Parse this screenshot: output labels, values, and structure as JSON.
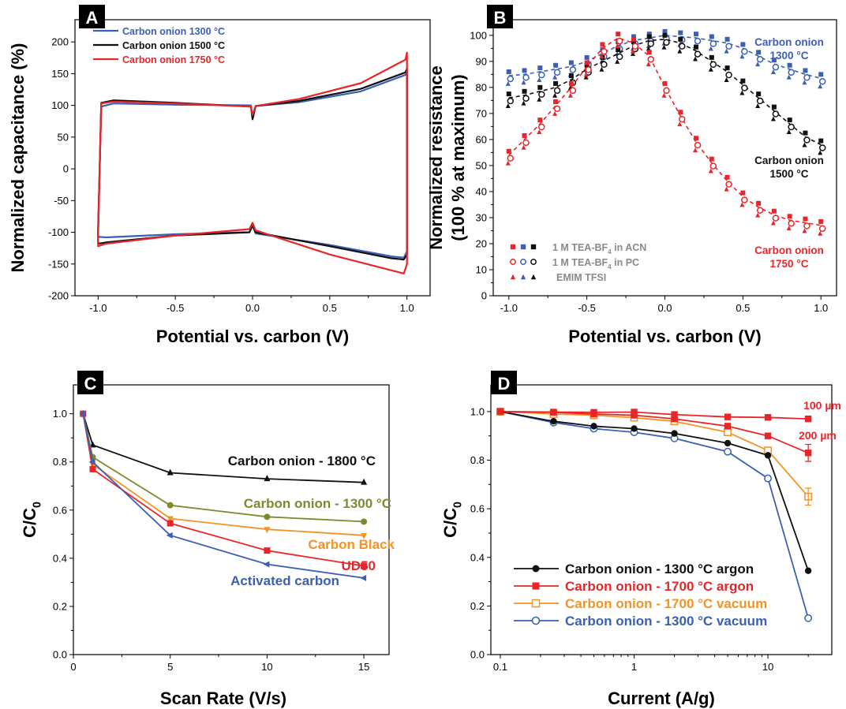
{
  "chart_data": [
    {
      "panel": "A",
      "type": "line",
      "xlabel": "Potential vs. carbon (V)",
      "ylabel": "Normalized capacitance (%)",
      "xlim": [
        -1.15,
        1.15
      ],
      "ylim": [
        -200,
        235
      ],
      "xticks": [
        -1.0,
        -0.5,
        0.0,
        0.5,
        1.0
      ],
      "xtick_labels": [
        "-1.0",
        "-0.5",
        "0.0",
        "0.5",
        "1.0"
      ],
      "yticks": [
        -200,
        -150,
        -100,
        -50,
        0,
        50,
        100,
        150,
        200
      ],
      "ytick_labels": [
        "-200",
        "-150",
        "-100",
        "-50",
        "0",
        "50",
        "100",
        "150",
        "200"
      ],
      "legend_position": "top-left",
      "series": [
        {
          "name": "Carbon onion 1300 °C",
          "color": "#3a5fb5",
          "x": [
            -1.0,
            -0.98,
            -0.9,
            -0.5,
            -0.01,
            0.0,
            0.02,
            0.3,
            0.7,
            0.99,
            1.0,
            1.0,
            0.98,
            0.9,
            0.5,
            0.02,
            0.0,
            -0.02,
            -0.5,
            -0.95,
            -1.0,
            -1.0
          ],
          "y": [
            -95,
            98,
            103,
            101,
            100,
            80,
            99,
            105,
            122,
            148,
            152,
            -130,
            -140,
            -138,
            -120,
            -102,
            -90,
            -100,
            -103,
            -108,
            -107,
            -95
          ]
        },
        {
          "name": "Carbon onion 1500 °C",
          "color": "#111111",
          "x": [
            -1.0,
            -0.98,
            -0.9,
            -0.5,
            -0.01,
            0.0,
            0.02,
            0.3,
            0.7,
            0.99,
            1.0,
            1.0,
            0.98,
            0.9,
            0.5,
            0.02,
            0.0,
            -0.02,
            -0.5,
            -0.95,
            -1.0,
            -1.0
          ],
          "y": [
            -100,
            104,
            108,
            104,
            98,
            78,
            99,
            107,
            126,
            152,
            158,
            -135,
            -143,
            -141,
            -122,
            -100,
            -88,
            -100,
            -105,
            -116,
            -118,
            -100
          ]
        },
        {
          "name": "Carbon onion 1750 °C",
          "color": "#e8262a",
          "x": [
            -1.0,
            -0.98,
            -0.9,
            -0.5,
            -0.01,
            0.0,
            0.02,
            0.3,
            0.7,
            0.99,
            1.0,
            1.0,
            0.98,
            0.9,
            0.5,
            0.02,
            0.0,
            -0.02,
            -0.5,
            -0.95,
            -1.0,
            -1.0
          ],
          "y": [
            -105,
            103,
            106,
            103,
            98,
            85,
            99,
            110,
            135,
            172,
            183,
            -150,
            -165,
            -160,
            -135,
            -97,
            -85,
            -95,
            -105,
            -118,
            -122,
            -105
          ]
        }
      ]
    },
    {
      "panel": "B",
      "type": "scatter",
      "xlabel": "Potential vs. carbon (V)",
      "ylabel": "Normalized resistance\n(100 % at maximum)",
      "ylabel_lines": [
        "Normalized resistance",
        "(100 % at maximum)"
      ],
      "xlim": [
        -1.1,
        1.1
      ],
      "ylim": [
        0,
        106
      ],
      "xticks": [
        -1.0,
        -0.5,
        0.0,
        0.5,
        1.0
      ],
      "xtick_labels": [
        "-1.0",
        "-0.5",
        "0.0",
        "0.5",
        "1.0"
      ],
      "yticks": [
        0,
        10,
        20,
        30,
        40,
        50,
        60,
        70,
        80,
        90,
        100
      ],
      "ytick_labels": [
        "0",
        "10",
        "20",
        "30",
        "40",
        "50",
        "60",
        "70",
        "80",
        "90",
        "100"
      ],
      "legend_position": "bottom-left",
      "legend": [
        {
          "label": "1 M TEA-BF",
          "sub": "4",
          "tail": " in ACN",
          "marker": "square"
        },
        {
          "label": "1 M TEA-BF",
          "sub": "4",
          "tail": " in PC",
          "marker": "circle"
        },
        {
          "label": "EMIM TFSI",
          "sub": "",
          "tail": "",
          "marker": "triangle"
        }
      ],
      "annotations": [
        {
          "lines": [
            "Carbon onion",
            "1300 °C"
          ],
          "color": "#3a5fb5"
        },
        {
          "lines": [
            "Carbon onion",
            "1500 °C"
          ],
          "color": "#111111"
        },
        {
          "lines": [
            "Carbon onion",
            "1750 °C"
          ],
          "color": "#e8262a"
        }
      ],
      "x": [
        -1.0,
        -0.9,
        -0.8,
        -0.7,
        -0.6,
        -0.5,
        -0.4,
        -0.3,
        -0.2,
        -0.1,
        0.0,
        0.1,
        0.2,
        0.3,
        0.4,
        0.5,
        0.6,
        0.7,
        0.8,
        0.9,
        1.0
      ],
      "series": [
        {
          "name": "Carbon onion 1300 °C",
          "color": "#3a5fb5",
          "values": [
            84.5,
            85,
            86,
            87,
            88,
            90,
            93,
            96,
            98,
            99,
            100,
            99.5,
            99,
            98,
            97,
            95,
            92,
            89,
            87,
            85,
            83.5
          ]
        },
        {
          "name": "Carbon onion 1500 °C",
          "color": "#111111",
          "values": [
            76,
            77,
            78.5,
            80,
            83,
            87,
            90,
            93,
            96,
            98,
            98.5,
            97,
            94,
            90,
            86,
            81,
            76,
            71,
            66,
            61,
            58
          ]
        },
        {
          "name": "Carbon onion 1750 °C",
          "color": "#e8262a",
          "values": [
            54,
            60,
            66,
            73,
            80,
            88,
            95,
            99,
            97,
            92,
            80,
            69,
            59,
            51,
            44,
            38,
            34,
            31,
            29,
            28,
            27
          ]
        }
      ]
    },
    {
      "panel": "C",
      "type": "line",
      "xlabel": "Scan Rate (V/s)",
      "ylabel": "C/C",
      "ylabel_sub": "0",
      "xlim": [
        0,
        16.3
      ],
      "ylim": [
        0,
        1.12
      ],
      "xticks": [
        0,
        5,
        10,
        15
      ],
      "xtick_labels": [
        "0",
        "5",
        "10",
        "15"
      ],
      "yticks": [
        0.0,
        0.2,
        0.4,
        0.6,
        0.8,
        1.0
      ],
      "ytick_labels": [
        "0.0",
        "0.2",
        "0.4",
        "0.6",
        "0.8",
        "1.0"
      ],
      "x": [
        0.5,
        1,
        5,
        10,
        15
      ],
      "series": [
        {
          "name": "Carbon onion - 1800 °C",
          "color": "#111111",
          "marker": "triangle-up",
          "values": [
            1.0,
            0.87,
            0.755,
            0.73,
            0.715
          ]
        },
        {
          "name": "Carbon onion - 1300 °C",
          "color": "#808830",
          "marker": "circle",
          "values": [
            1.0,
            0.82,
            0.62,
            0.572,
            0.552
          ]
        },
        {
          "name": "Carbon Black",
          "color": "#f39325",
          "marker": "triangle-down",
          "values": [
            1.0,
            0.79,
            0.565,
            0.52,
            0.495
          ]
        },
        {
          "name": "UD50",
          "color": "#e8262a",
          "marker": "square",
          "values": [
            1.0,
            0.77,
            0.545,
            0.432,
            0.368
          ]
        },
        {
          "name": "Activated carbon",
          "color": "#3a5fb5",
          "marker": "triangle-left",
          "values": [
            1.0,
            0.8,
            0.495,
            0.375,
            0.318
          ]
        }
      ]
    },
    {
      "panel": "D",
      "type": "line",
      "xlabel": "Current (A/g)",
      "ylabel": "C/C",
      "ylabel_sub": "0",
      "xscale": "log",
      "xlim": [
        0.085,
        30
      ],
      "ylim": [
        0,
        1.11
      ],
      "xticks": [
        0.1,
        1,
        10
      ],
      "xtick_labels": [
        "0.1",
        "1",
        "10"
      ],
      "yticks": [
        0.0,
        0.2,
        0.4,
        0.6,
        0.8,
        1.0
      ],
      "ytick_labels": [
        "0.0",
        "0.2",
        "0.4",
        "0.6",
        "0.8",
        "1.0"
      ],
      "legend_position": "bottom-left",
      "annotations": [
        {
          "text": "100 µm",
          "color": "#e8262a"
        },
        {
          "text": "200 µm",
          "color": "#e8262a"
        }
      ],
      "x": [
        0.1,
        0.25,
        0.5,
        1,
        2,
        5,
        10,
        20
      ],
      "series": [
        {
          "name": "Carbon onion - 1300 °C argon",
          "color": "#111111",
          "marker": "circle-filled",
          "values": [
            1.0,
            0.96,
            0.94,
            0.93,
            0.91,
            0.87,
            0.82,
            0.345
          ]
        },
        {
          "name": "Carbon onion - 1700 °C argon",
          "color": "#e8262a",
          "marker": "square-filled",
          "values": [
            1.0,
            0.997,
            0.99,
            0.985,
            0.97,
            0.94,
            0.9,
            0.83
          ]
        },
        {
          "name": "Carbon onion - 1700 °C vacuum",
          "color": "#f39325",
          "marker": "square-open",
          "values": [
            1.0,
            0.99,
            0.985,
            0.975,
            0.96,
            0.915,
            0.84,
            0.65
          ]
        },
        {
          "name": "Carbon onion - 1300 °C vacuum",
          "color": "#3a5fb5",
          "marker": "circle-open",
          "values": [
            1.0,
            0.955,
            0.93,
            0.915,
            0.89,
            0.835,
            0.725,
            0.15
          ]
        },
        {
          "name": "100 µm",
          "color": "#e8262a",
          "marker": "square-filled",
          "values": [
            1.0,
            0.998,
            0.997,
            0.998,
            0.988,
            0.978,
            0.976,
            0.97
          ]
        }
      ]
    }
  ]
}
